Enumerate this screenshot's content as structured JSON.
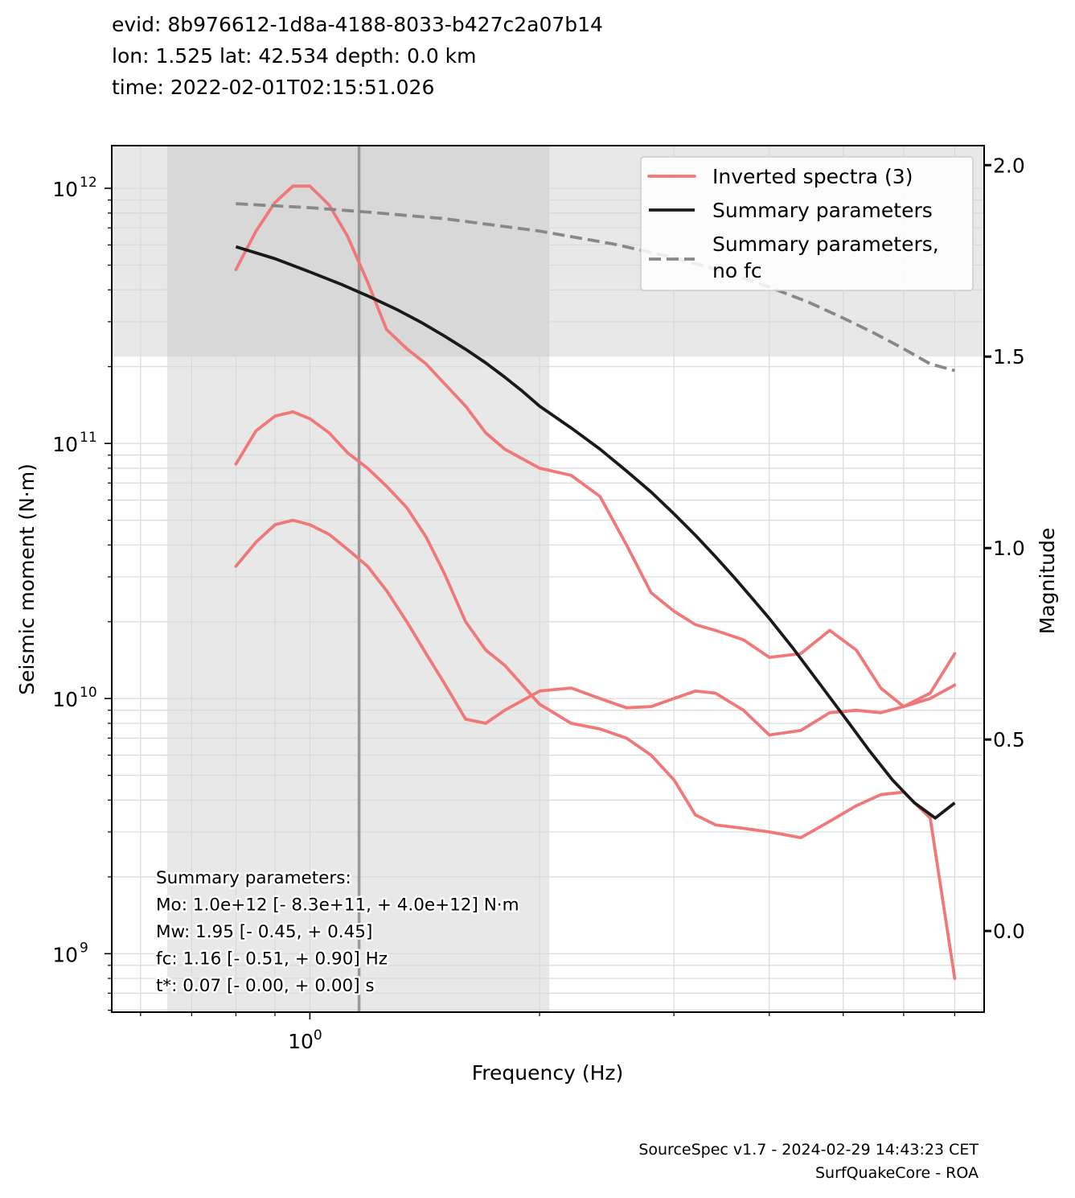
{
  "header": {
    "evid": "evid: 8b976612-1d8a-4188-8033-b427c2a07b14",
    "location": "lon: 1.525 lat: 42.534 depth: 0.0 km",
    "time": "time: 2022-02-01T02:15:51.026"
  },
  "footer": {
    "line1": "SourceSpec v1.7 - 2024-02-29 14:43:23 CET",
    "line2": "SurfQuakeCore - ROA"
  },
  "summary_box": {
    "lines": [
      "Summary parameters:",
      "Mo: 1.0e+12 [- 8.3e+11, + 4.0e+12] N·m",
      "Mw: 1.95 [- 0.45, + 0.45]",
      "fc: 1.16 [- 0.51, + 0.90] Hz",
      "t*: 0.07 [- 0.00, + 0.00] s"
    ]
  },
  "colors": {
    "inverted": "#f07878",
    "summary": "#1a1a1a",
    "nofc": "#888888",
    "fc_line": "#999999",
    "band_outer": "#e8e8e8",
    "band_inner": "#d8d8d8",
    "grid": "#d9d9d9"
  },
  "chart_data": {
    "type": "line",
    "xlabel": "Frequency (Hz)",
    "ylabel": "Seismic moment (N·m)",
    "y2label": "Magnitude",
    "xscale": "log",
    "yscale": "log",
    "xlim": [
      0.55,
      7.65
    ],
    "ylim": [
      590000000.0,
      1470000000000.0
    ],
    "y2lim": [
      -0.212,
      2.051
    ],
    "x_tick_labels": [
      {
        "value": 1.0,
        "label": "10^0"
      }
    ],
    "y_tick_labels": [
      {
        "value": 1000000000.0,
        "label": "10^9"
      },
      {
        "value": 10000000000.0,
        "label": "10^10"
      },
      {
        "value": 100000000000.0,
        "label": "10^11"
      },
      {
        "value": 1000000000000.0,
        "label": "10^12"
      }
    ],
    "y2_ticks": [
      0.0,
      0.5,
      1.0,
      1.5,
      2.0
    ],
    "legend": {
      "position": "top-right",
      "entries": [
        "Inverted spectra (3)",
        "Summary parameters",
        "Summary parameters,\nno fc"
      ]
    },
    "fc_line_x": 1.16,
    "fc_band_x": [
      0.65,
      2.06
    ],
    "mw_band_y": [
      1.5,
      2.4
    ],
    "series": [
      {
        "name": "Inverted spectra (3)",
        "style": "inverted",
        "x": [
          0.8,
          0.85,
          0.9,
          0.95,
          1.0,
          1.06,
          1.12,
          1.19,
          1.26,
          1.34,
          1.42,
          1.5,
          1.6,
          1.7,
          1.8,
          2.0,
          2.2,
          2.4,
          2.6,
          2.8,
          3.0,
          3.2,
          3.4,
          3.7,
          4.0,
          4.4,
          4.8,
          5.2,
          5.6,
          6.0,
          6.5,
          7.0
        ],
        "y": [
          480000000000.0,
          680000000000.0,
          880000000000.0,
          1020000000000.0,
          1020000000000.0,
          860000000000.0,
          650000000000.0,
          430000000000.0,
          280000000000.0,
          235000000000.0,
          205000000000.0,
          172000000000.0,
          140000000000.0,
          110000000000.0,
          95000000000.0,
          80000000000.0,
          75000000000.0,
          62000000000.0,
          40000000000.0,
          26000000000.0,
          22000000000.0,
          19500000000.0,
          18500000000.0,
          17000000000.0,
          14500000000.0,
          15000000000.0,
          18500000000.0,
          15500000000.0,
          11000000000.0,
          9300000000.0,
          10500000000.0,
          15000000000.0
        ]
      },
      {
        "name": "",
        "style": "inverted",
        "x": [
          0.8,
          0.85,
          0.9,
          0.95,
          1.0,
          1.06,
          1.12,
          1.19,
          1.26,
          1.34,
          1.42,
          1.5,
          1.6,
          1.7,
          1.8,
          2.0,
          2.2,
          2.4,
          2.6,
          2.8,
          3.0,
          3.2,
          3.4,
          3.7,
          4.0,
          4.4,
          4.8,
          5.2,
          5.6,
          6.0,
          6.5,
          7.0
        ],
        "y": [
          83000000000.0,
          112000000000.0,
          128000000000.0,
          133000000000.0,
          125000000000.0,
          110000000000.0,
          92000000000.0,
          80000000000.0,
          68000000000.0,
          56000000000.0,
          43000000000.0,
          31000000000.0,
          20000000000.0,
          15500000000.0,
          13500000000.0,
          9500000000.0,
          8000000000.0,
          7600000000.0,
          7000000000.0,
          6000000000.0,
          4800000000.0,
          3500000000.0,
          3200000000.0,
          3100000000.0,
          3000000000.0,
          2850000000.0,
          3300000000.0,
          3800000000.0,
          4200000000.0,
          4300000000.0,
          3400000000.0,
          800000000.0
        ]
      },
      {
        "name": "",
        "style": "inverted",
        "x": [
          0.8,
          0.85,
          0.9,
          0.95,
          1.0,
          1.06,
          1.12,
          1.19,
          1.26,
          1.34,
          1.42,
          1.5,
          1.6,
          1.7,
          1.8,
          2.0,
          2.2,
          2.4,
          2.6,
          2.8,
          3.0,
          3.2,
          3.4,
          3.7,
          4.0,
          4.4,
          4.8,
          5.2,
          5.6,
          6.0,
          6.5,
          7.0
        ],
        "y": [
          33000000000.0,
          41000000000.0,
          48000000000.0,
          50000000000.0,
          48000000000.0,
          44000000000.0,
          38500000000.0,
          33000000000.0,
          26500000000.0,
          20000000000.0,
          15000000000.0,
          11500000000.0,
          8300000000.0,
          8000000000.0,
          9000000000.0,
          10700000000.0,
          11000000000.0,
          10000000000.0,
          9200000000.0,
          9300000000.0,
          10000000000.0,
          10700000000.0,
          10500000000.0,
          9000000000.0,
          7200000000.0,
          7500000000.0,
          8800000000.0,
          9000000000.0,
          8800000000.0,
          9300000000.0,
          10000000000.0,
          11300000000.0
        ]
      },
      {
        "name": "Summary parameters",
        "style": "summary",
        "x": [
          0.8,
          0.9,
          1.0,
          1.1,
          1.2,
          1.3,
          1.4,
          1.5,
          1.6,
          1.7,
          1.8,
          1.9,
          2.0,
          2.2,
          2.4,
          2.6,
          2.8,
          3.0,
          3.2,
          3.4,
          3.6,
          3.8,
          4.0,
          4.3,
          4.6,
          5.0,
          5.4,
          5.8,
          6.2,
          6.6,
          7.0
        ],
        "y": [
          590000000000.0,
          530000000000.0,
          470000000000.0,
          420000000000.0,
          375000000000.0,
          335000000000.0,
          298000000000.0,
          264000000000.0,
          234000000000.0,
          207000000000.0,
          182000000000.0,
          160000000000.0,
          140000000000.0,
          115000000000.0,
          95000000000.0,
          78000000000.0,
          64500000000.0,
          53000000000.0,
          43700000000.0,
          36000000000.0,
          29800000000.0,
          24700000000.0,
          20600000000.0,
          15700000000.0,
          12000000000.0,
          8600000000.0,
          6300000000.0,
          4800000000.0,
          3900000000.0,
          3400000000.0,
          3900000000.0
        ]
      },
      {
        "name": "Summary parameters,\nno fc",
        "style": "nofc",
        "x": [
          0.8,
          1.0,
          1.2,
          1.5,
          2.0,
          2.5,
          3.0,
          3.5,
          4.0,
          4.5,
          5.0,
          5.5,
          6.0,
          6.5,
          7.0
        ],
        "y": [
          870000000000.0,
          840000000000.0,
          805000000000.0,
          760000000000.0,
          680000000000.0,
          605000000000.0,
          535000000000.0,
          470000000000.0,
          410000000000.0,
          358000000000.0,
          310000000000.0,
          270000000000.0,
          235000000000.0,
          205000000000.0,
          193000000000.0
        ]
      }
    ]
  }
}
